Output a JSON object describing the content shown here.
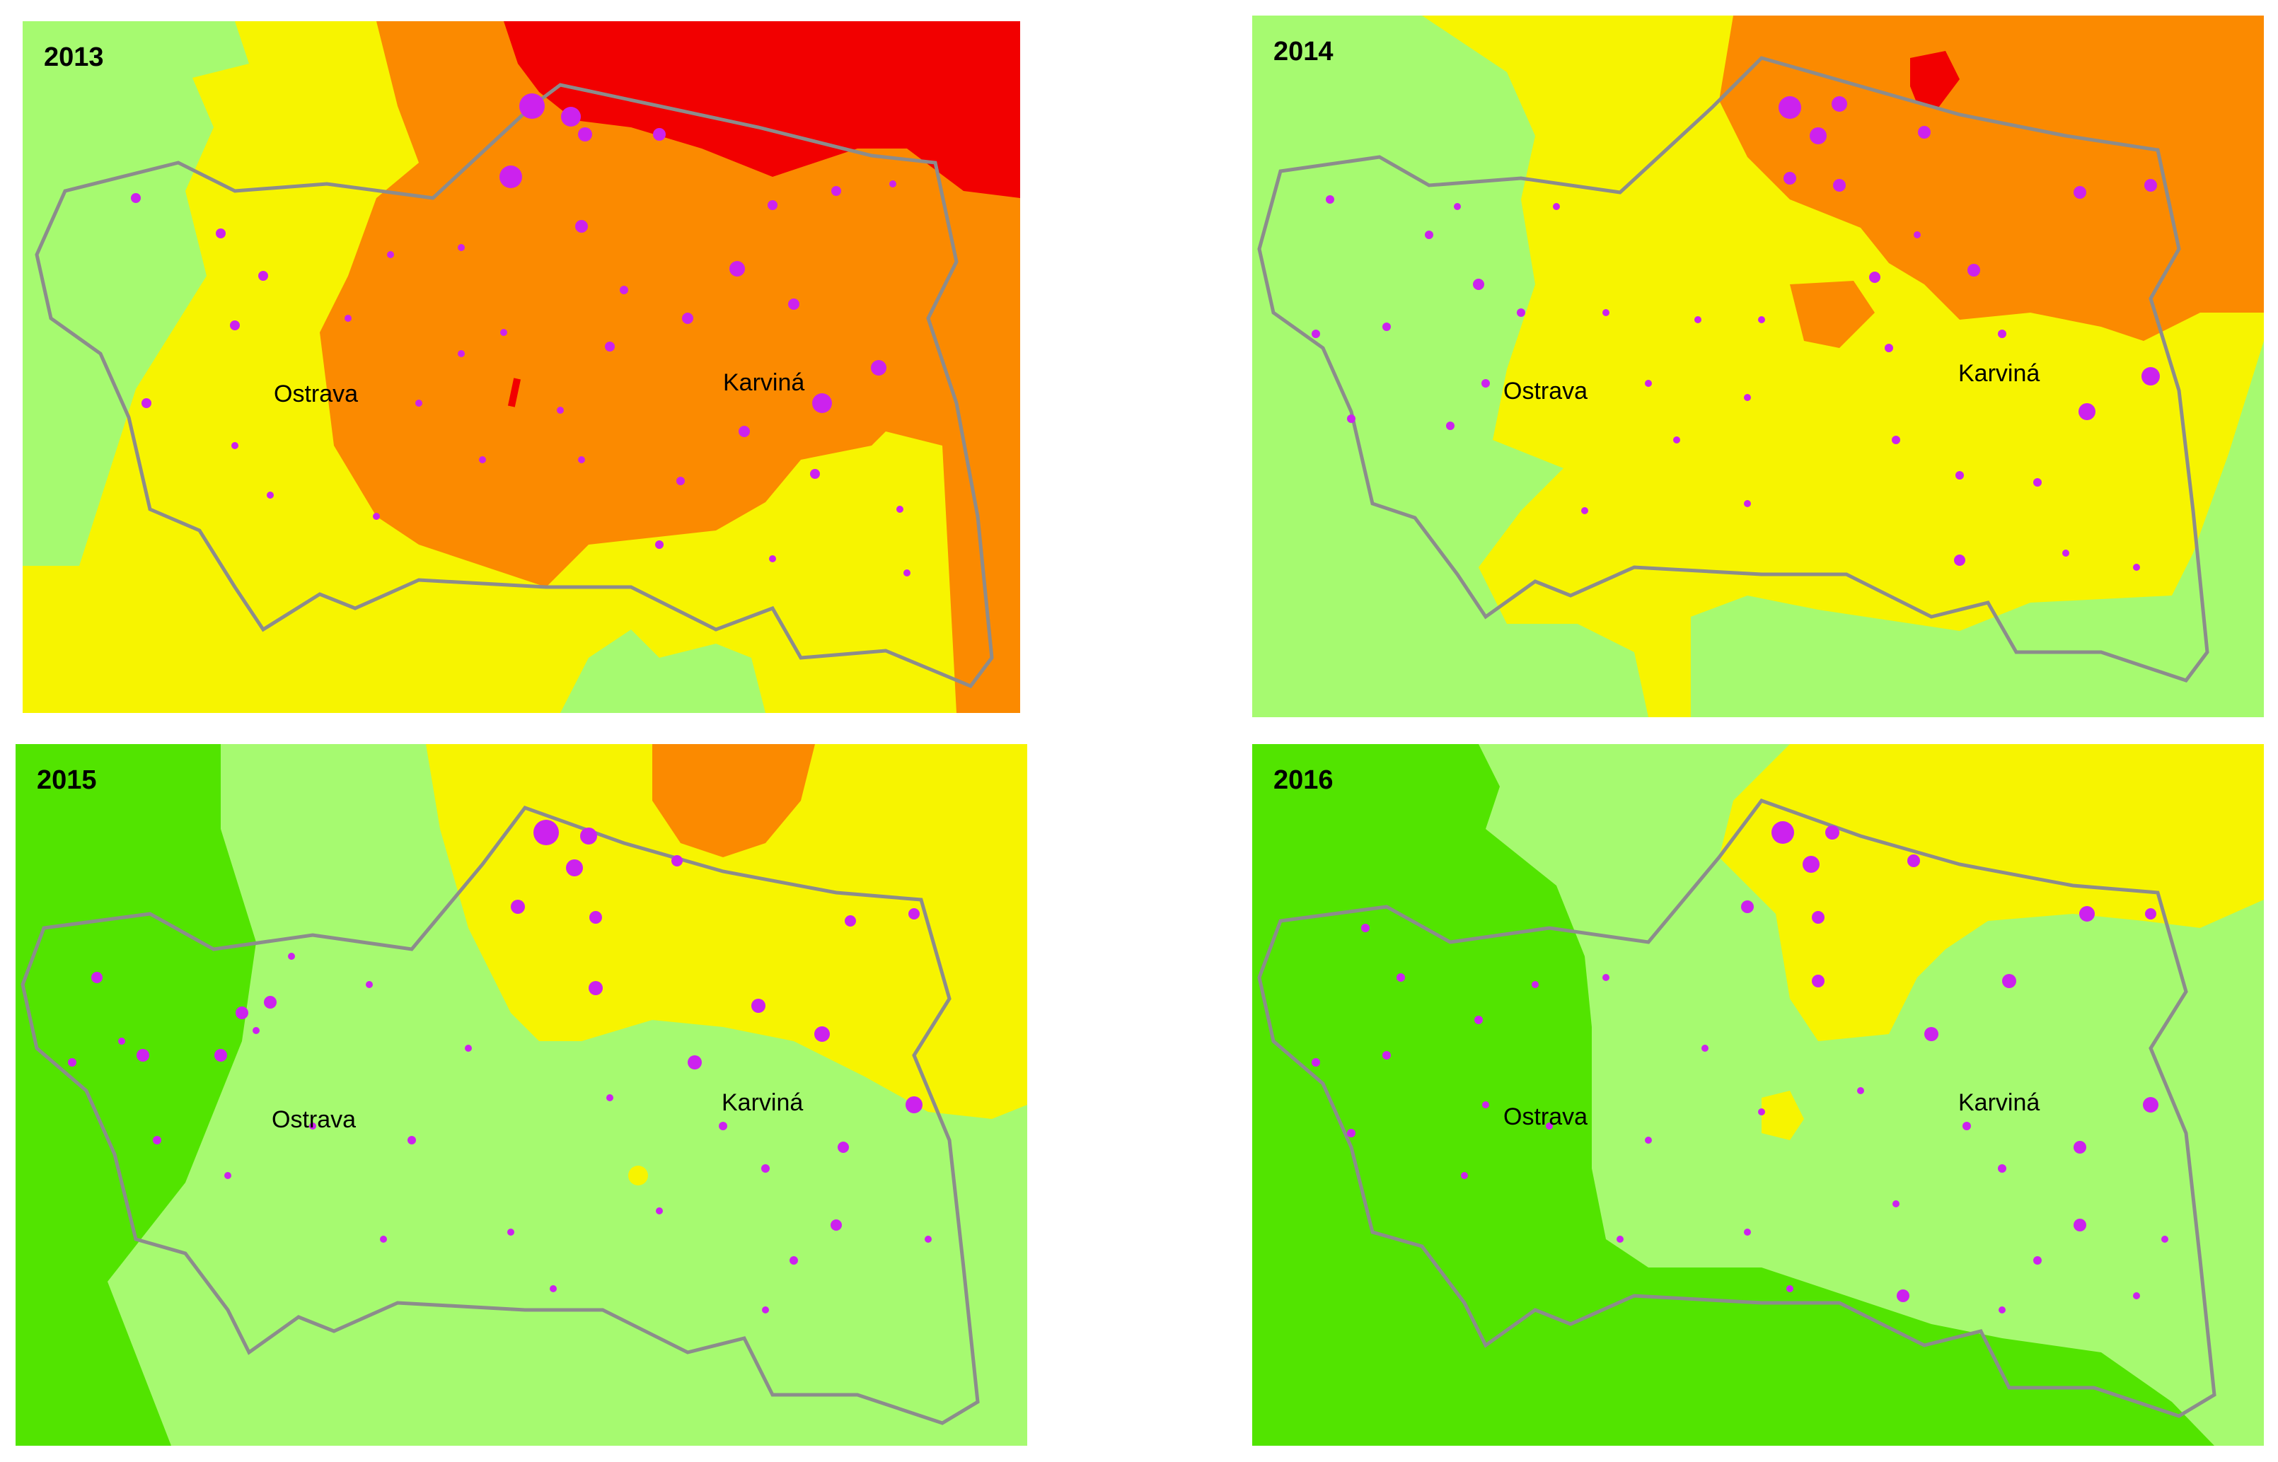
{
  "colors": {
    "red": "#f20000",
    "orange": "#fb8a00",
    "yellow": "#f7f400",
    "light_green": "#a6fa70",
    "green": "#52e400",
    "points": "#cc22ee",
    "border": "#8c8c8c",
    "municipality_line": "#7a7a4a"
  },
  "panels": [
    {
      "year": "2013",
      "city_a": "Ostrava",
      "city_b": "Karviná"
    },
    {
      "year": "2014",
      "city_a": "Ostrava",
      "city_b": "Karviná"
    },
    {
      "year": "2015",
      "city_a": "Ostrava",
      "city_b": "Karviná"
    },
    {
      "year": "2016",
      "city_a": "Ostrava",
      "city_b": "Karviná"
    }
  ]
}
